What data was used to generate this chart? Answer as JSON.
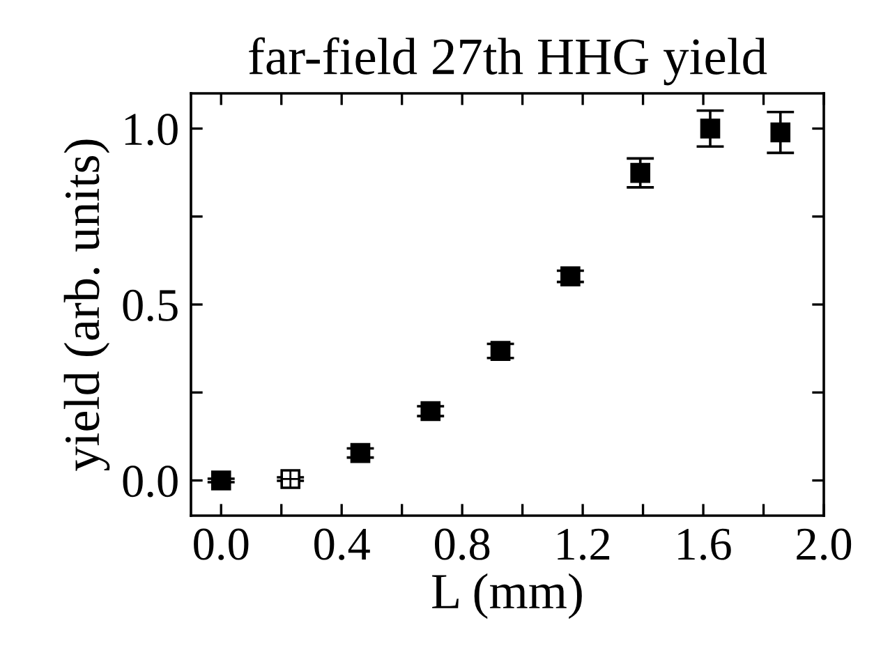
{
  "chart_data": {
    "type": "scatter",
    "title": "far-field 27th HHG yield",
    "xlabel": "L (mm)",
    "ylabel": "yield (arb. units)",
    "series": [
      {
        "color": "#000000",
        "marker": "square",
        "x": [
          0,
          0.462,
          0.695,
          0.927,
          1.159,
          1.391,
          1.623,
          1.856
        ],
        "values": [
          0,
          0.078,
          0.197,
          0.368,
          0.58,
          0.874,
          1.0,
          0.989
        ],
        "errors": [
          0.005,
          0.013,
          0.014,
          0.02,
          0.016,
          0.041,
          0.051,
          0.058
        ]
      },
      {
        "color": "#000000",
        "marker": "square",
        "x": [
          0.23
        ],
        "values": [
          0.004
        ],
        "errors": [
          0.005
        ]
      }
    ],
    "xlim": [
      -0.1,
      2.0
    ],
    "ylim": [
      -0.1,
      1.1
    ],
    "xticks": [
      {
        "value": 0,
        "label": "0.0"
      },
      {
        "value": 0.2,
        "label": null
      },
      {
        "value": 0.4,
        "label": "0.4"
      },
      {
        "value": 0.6,
        "label": null
      },
      {
        "value": 0.8,
        "label": "0.8"
      },
      {
        "value": 1.0,
        "label": null
      },
      {
        "value": 1.2,
        "label": "1.2"
      },
      {
        "value": 1.4,
        "label": null
      },
      {
        "value": 1.6,
        "label": "1.6"
      },
      {
        "value": 1.8,
        "label": null
      },
      {
        "value": 2.0,
        "label": "2.0"
      }
    ],
    "yticks": [
      {
        "value": 0,
        "label": "0.0"
      },
      {
        "value": 0.25,
        "label": null
      },
      {
        "value": 0.5,
        "label": "0.5"
      },
      {
        "value": 0.75,
        "label": null
      },
      {
        "value": 1.0,
        "label": "1.0"
      }
    ],
    "grid": false,
    "legend": false
  }
}
